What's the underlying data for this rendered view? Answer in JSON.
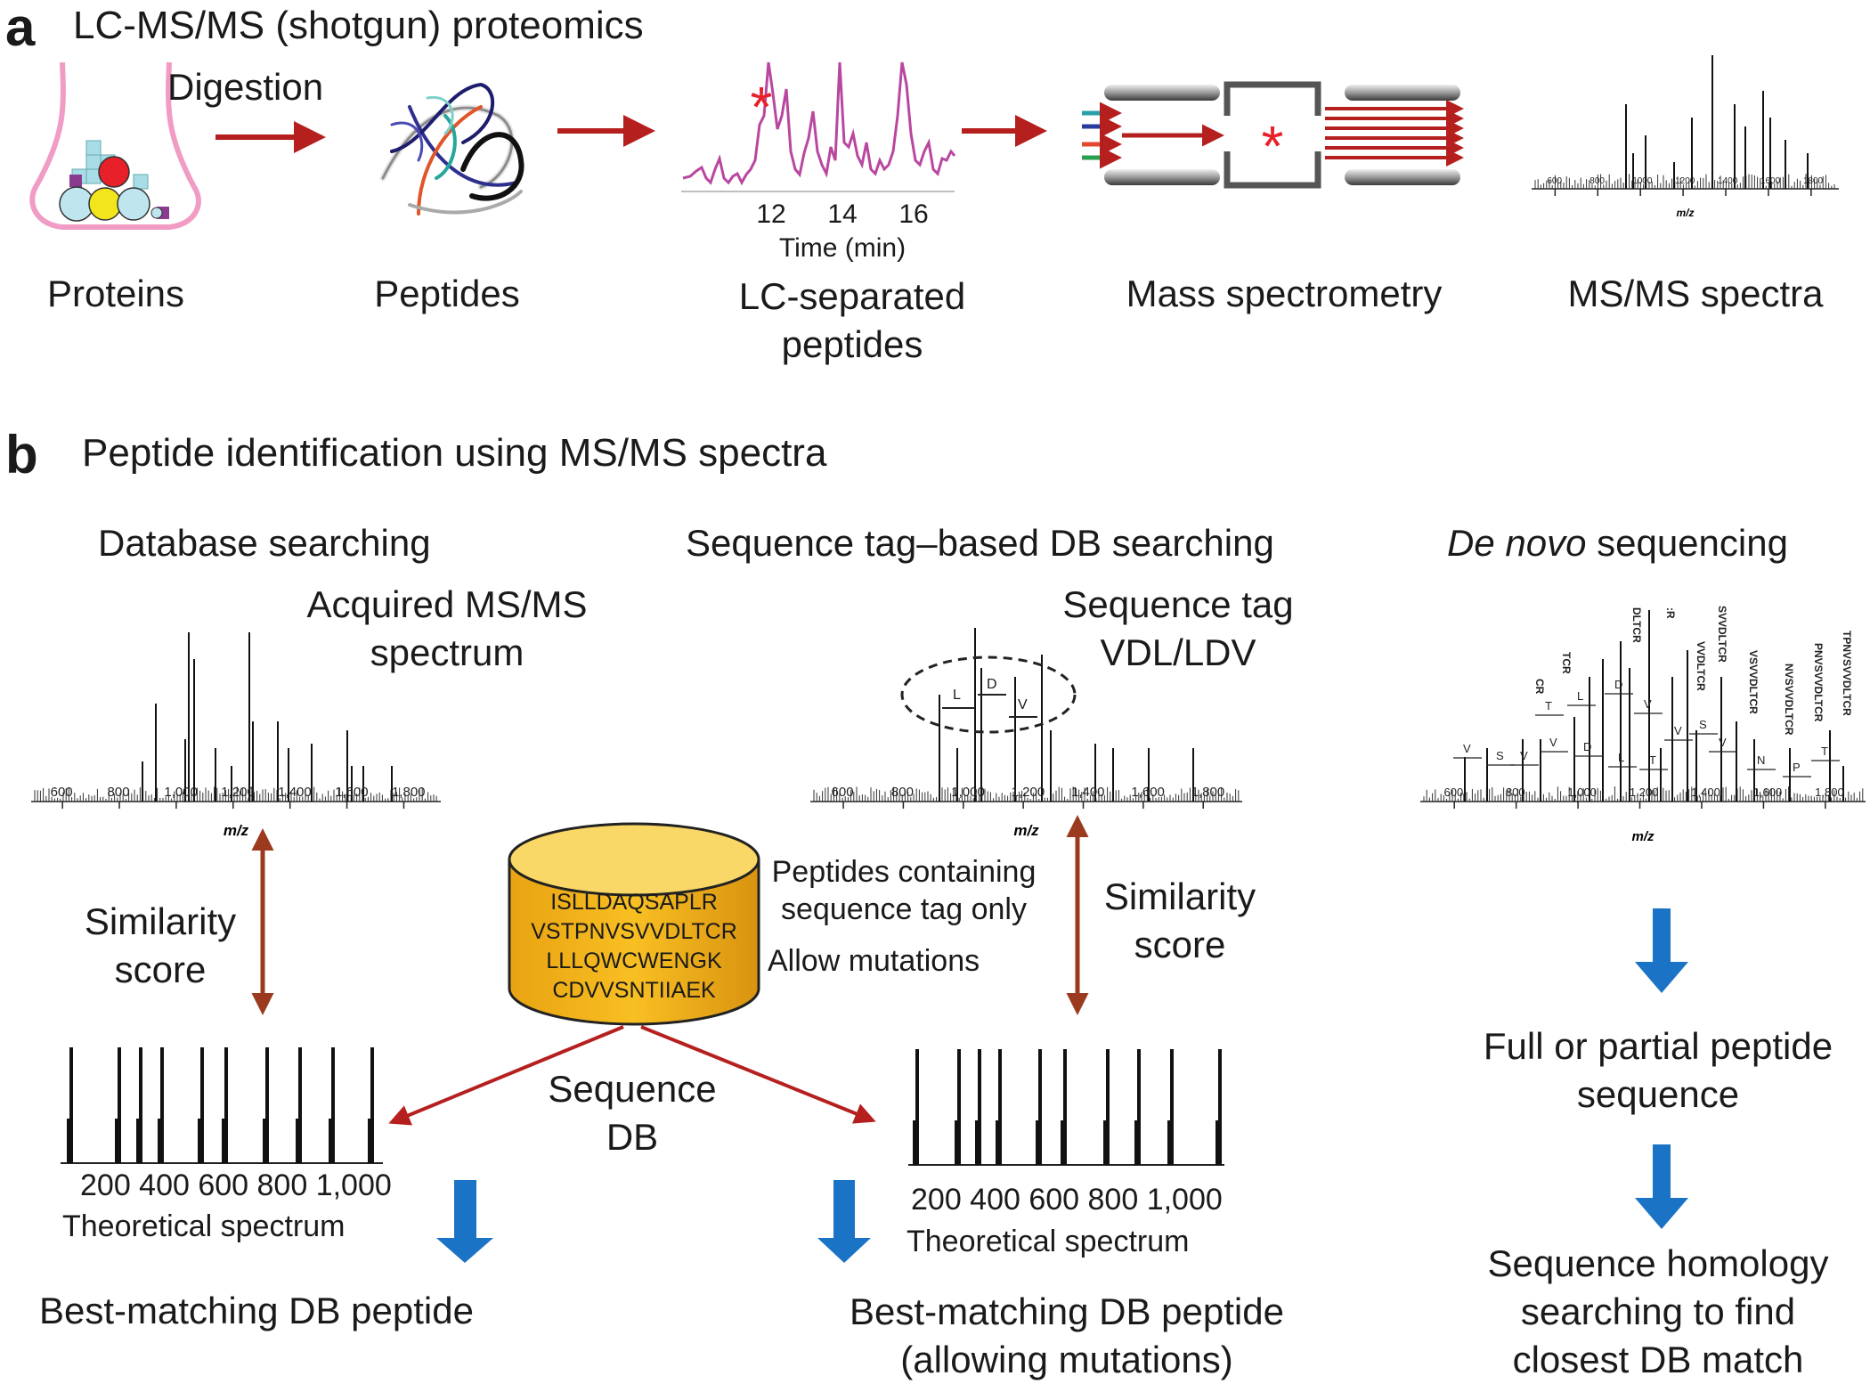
{
  "panel_a": {
    "letter": "a",
    "title": "LC-MS/MS (shotgun) proteomics",
    "digestion_label": "Digestion",
    "stages": [
      "Proteins",
      "Peptides",
      "LC-separated\npeptides",
      "Mass spectrometry",
      "MS/MS spectra"
    ],
    "lc_ticks": [
      "12",
      "14",
      "16"
    ],
    "lc_axis_label": "Time (min)",
    "ms_ticks": [
      "600",
      "800",
      "1000",
      "1200",
      "1400",
      "1600",
      "1800"
    ],
    "ms_axis_label": "m/z"
  },
  "panel_b": {
    "letter": "b",
    "title": "Peptide identification using MS/MS spectra",
    "col1": {
      "heading": "Database searching",
      "spectrum_label": "Acquired MS/MS\nspectrum",
      "ticks": [
        "600",
        "800",
        "1,000",
        "1,200",
        "1,400",
        "1,600",
        "1,800"
      ],
      "axis": "m/z",
      "similarity": "Similarity\nscore",
      "theo_ticks": "200 400 600 800 1,000",
      "theo_label": "Theoretical spectrum",
      "result": "Best-matching DB peptide"
    },
    "col2": {
      "heading": "Sequence tag–based DB searching",
      "tag_label": "Sequence tag\nVDL/LDV",
      "ticks": [
        "600",
        "800",
        "1,000",
        "1,200",
        "1,400",
        "1,600",
        "1,800"
      ],
      "axis": "m/z",
      "tag_letters": [
        "L",
        "D",
        "V"
      ],
      "note1": "Peptides containing\nsequence tag only",
      "note2": "Allow mutations",
      "similarity": "Similarity\nscore",
      "theo_ticks": "200 400 600 800 1,000",
      "theo_label": "Theoretical spectrum",
      "result": "Best-matching DB peptide\n(allowing mutations)"
    },
    "database": {
      "sequences": [
        "ISLLDAQSAPLR",
        "VSTPNVSVVDLTCR",
        "LLLQWCWENGK",
        "CDVVSNTIIAEK"
      ],
      "label": "Sequence\nDB"
    },
    "col3": {
      "heading_italic": "De novo",
      "heading_rest": " sequencing",
      "ticks": [
        "600",
        "800",
        "1,000",
        "1,200",
        "1,400",
        "1,600",
        "1,800"
      ],
      "axis": "m/z",
      "residues": [
        "V",
        "S",
        "V",
        "V",
        "D",
        "L",
        "T",
        "T",
        "L",
        "D",
        "V",
        "V",
        "S",
        "V",
        "N",
        "P",
        "T"
      ],
      "fragments": [
        "CR",
        "TCR",
        "DLTCR",
        ":R",
        "VVDLTCR",
        "SVVDLTCR",
        "VSVVDLTCR",
        "NVSVVDLTCR",
        "PNVSVVDLTCR",
        "TPNVSVVDLTCR"
      ],
      "step1": "Full or partial peptide\nsequence",
      "step2": "Sequence homology\nsearching to find\nclosest DB match"
    }
  },
  "colors": {
    "red_arrow": "#b5201f",
    "brown_arrow": "#9b3a1e",
    "blue_arrow": "#1a73c4",
    "db_fill": "#f6b91e",
    "lc_trace": "#b9479f",
    "star": "#e8202a",
    "flask": "#f09cc4"
  }
}
